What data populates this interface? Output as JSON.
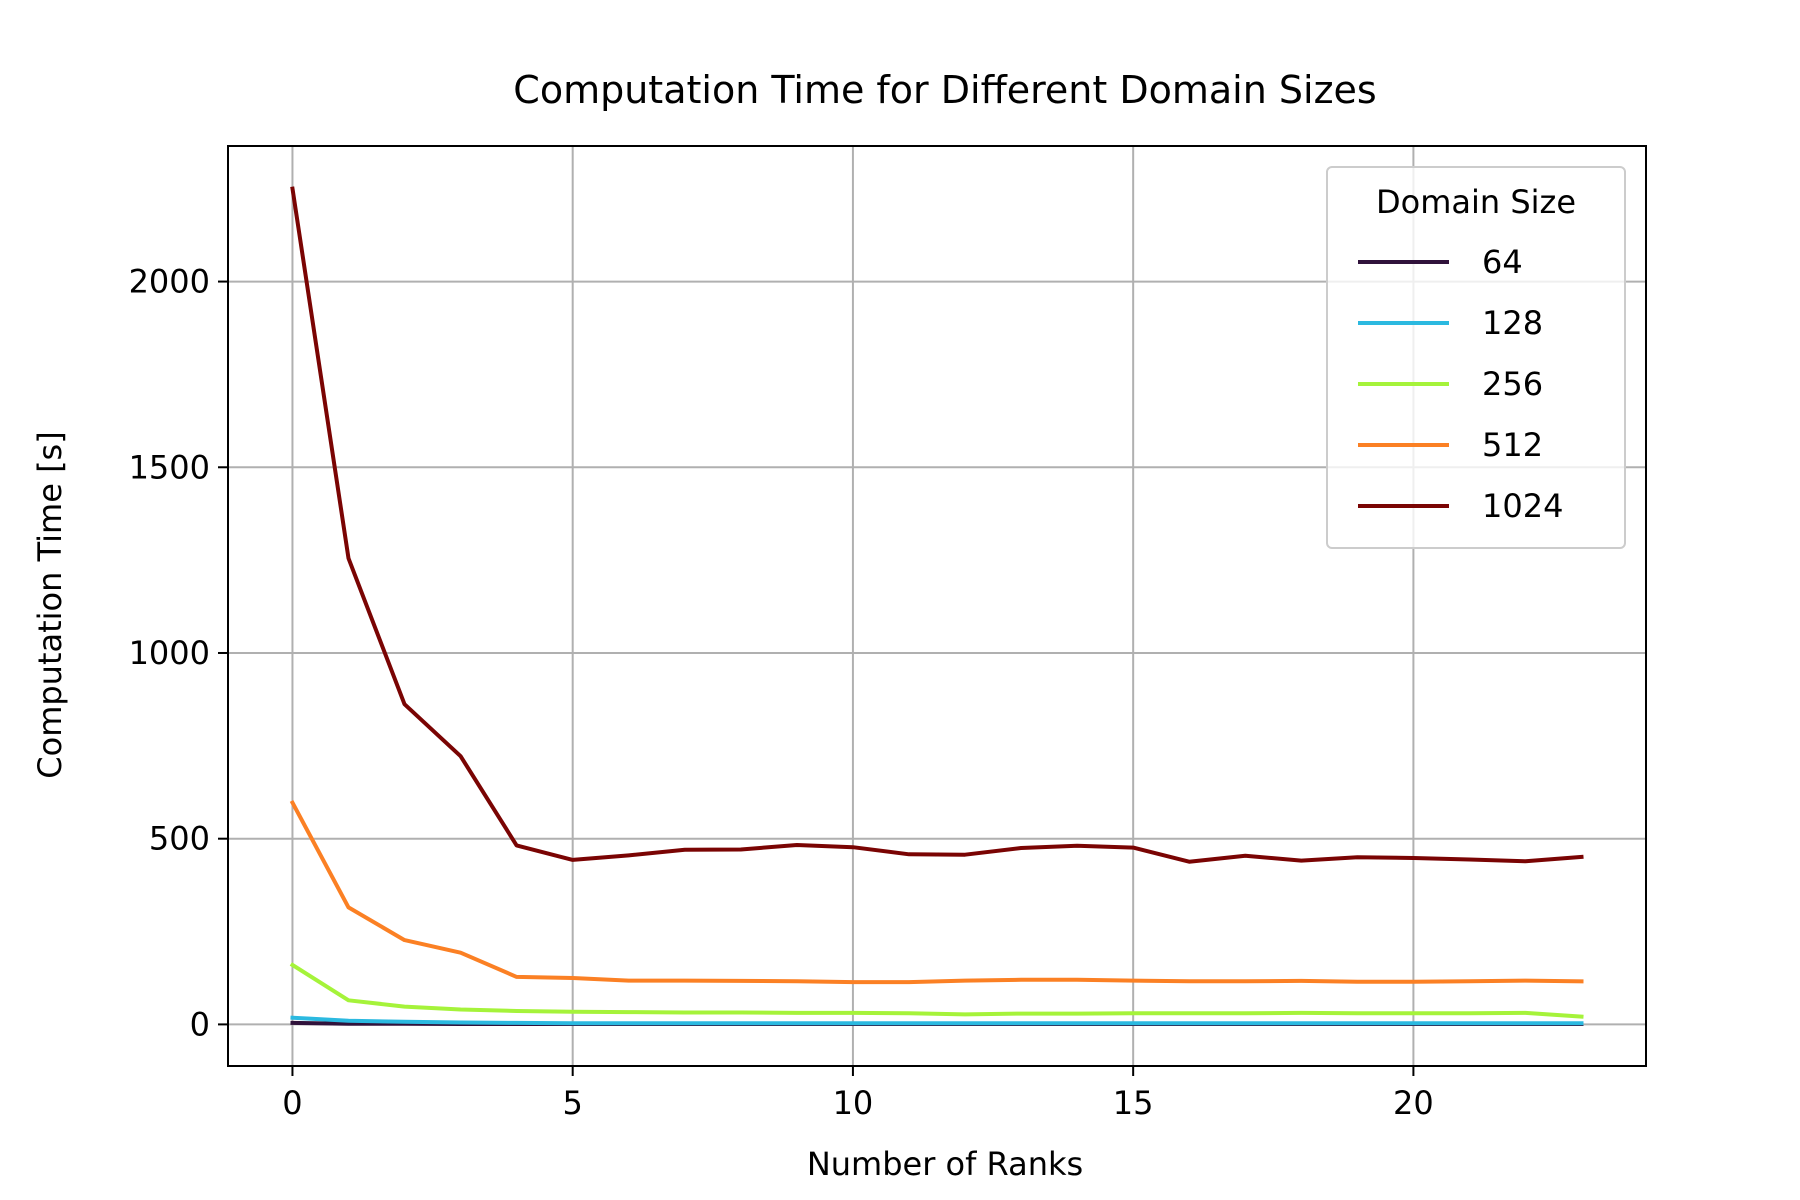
{
  "chart_data": {
    "type": "line",
    "title": "Computation Time for Different Domain Sizes",
    "xlabel": "Number of Ranks",
    "ylabel": "Computation Time [s]",
    "xlim": [
      -1.15,
      24.15
    ],
    "ylim": [
      -112,
      2365
    ],
    "xticks": [
      0,
      5,
      10,
      15,
      20
    ],
    "yticks": [
      0,
      500,
      1000,
      1500,
      2000
    ],
    "grid": true,
    "legend": {
      "title": "Domain Size",
      "position": "top-right"
    },
    "x": [
      0,
      1,
      2,
      3,
      4,
      5,
      6,
      7,
      8,
      9,
      10,
      11,
      12,
      13,
      14,
      15,
      16,
      17,
      18,
      19,
      20,
      21,
      22,
      23
    ],
    "series": [
      {
        "name": "64",
        "color": "#30123b",
        "values": [
          4,
          2,
          1.5,
          1,
          1,
          1,
          1,
          1,
          1,
          1,
          1,
          1,
          1,
          1,
          1,
          1,
          1,
          1,
          1,
          1,
          1,
          1,
          1,
          1
        ]
      },
      {
        "name": "128",
        "color": "#2bb9e0",
        "values": [
          18,
          10,
          7,
          5,
          4,
          3,
          3,
          3,
          3,
          3,
          3,
          3,
          3,
          3,
          3,
          3,
          3,
          3,
          3,
          3,
          3,
          3,
          3,
          3
        ]
      },
      {
        "name": "256",
        "color": "#a5f33a",
        "values": [
          160,
          65,
          48,
          40,
          36,
          34,
          33,
          32,
          32,
          31,
          31,
          30,
          27,
          29,
          29,
          30,
          30,
          30,
          31,
          30,
          30,
          30,
          31,
          21
        ]
      },
      {
        "name": "512",
        "color": "#fb8024",
        "values": [
          597,
          315,
          227,
          193,
          128,
          125,
          118,
          118,
          117,
          116,
          114,
          114,
          118,
          120,
          120,
          118,
          116,
          116,
          117,
          115,
          115,
          116,
          118,
          116
        ]
      },
      {
        "name": "1024",
        "color": "#7a0403",
        "values": [
          2250,
          1255,
          862,
          722,
          482,
          443,
          455,
          470,
          471,
          483,
          477,
          458,
          457,
          475,
          481,
          476,
          438,
          454,
          441,
          450,
          448,
          444,
          439,
          451
        ]
      }
    ]
  }
}
